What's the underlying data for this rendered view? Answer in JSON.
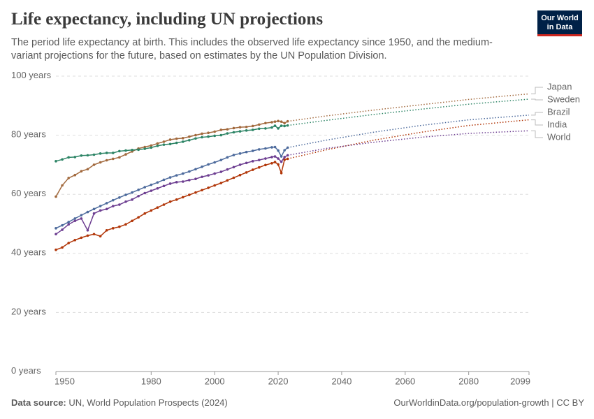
{
  "logo": "Our World in Data",
  "chart_data": {
    "type": "line",
    "title": "Life expectancy, including UN projections",
    "subtitle": "The period life expectancy at birth. This includes the observed life expectancy since 1950, and the medium-variant projections for the future, based on estimates by the UN Population Division.",
    "source_label": "Data source:",
    "source": "UN, World Population Prospects (2024)",
    "url": "OurWorldinData.org/population-growth | CC BY",
    "xlim": [
      1950,
      2099
    ],
    "xticks": [
      1950,
      1980,
      2000,
      2020,
      2040,
      2060,
      2080,
      2099
    ],
    "ylim": [
      0,
      100
    ],
    "yticks": [
      {
        "value": 0,
        "label": "0 years"
      },
      {
        "value": 20,
        "label": "20 years"
      },
      {
        "value": 40,
        "label": "40 years"
      },
      {
        "value": 60,
        "label": "60 years"
      },
      {
        "value": 80,
        "label": "80 years"
      },
      {
        "value": 100,
        "label": "100 years"
      }
    ],
    "grid": true,
    "x": [
      1950,
      1952,
      1954,
      1956,
      1958,
      1960,
      1962,
      1964,
      1966,
      1968,
      1970,
      1972,
      1974,
      1976,
      1978,
      1980,
      1982,
      1984,
      1986,
      1988,
      1990,
      1992,
      1994,
      1996,
      1998,
      2000,
      2002,
      2004,
      2006,
      2008,
      2010,
      2012,
      2014,
      2016,
      2018,
      2019,
      2020,
      2021,
      2022,
      2023
    ],
    "x_projection": [
      2023,
      2035,
      2050,
      2065,
      2080,
      2099
    ],
    "series": [
      {
        "name": "Japan",
        "color": "#a2693d",
        "values": [
          59.2,
          63,
          65.5,
          66.5,
          67.8,
          68.5,
          70,
          70.8,
          71.5,
          72,
          72.5,
          73.5,
          74.5,
          75.5,
          76,
          76.5,
          77.2,
          77.8,
          78.5,
          78.8,
          79,
          79.5,
          80,
          80.5,
          80.8,
          81.2,
          81.8,
          82,
          82.4,
          82.7,
          82.8,
          83.1,
          83.6,
          84.1,
          84.4,
          84.6,
          84.8,
          84.6,
          84.1,
          84.7
        ],
        "projection": [
          84.7,
          86.5,
          88.5,
          90.3,
          92.1,
          94.0
        ]
      },
      {
        "name": "Sweden",
        "color": "#2c8465",
        "values": [
          71.2,
          71.8,
          72.5,
          72.6,
          73.1,
          73.2,
          73.4,
          73.8,
          74,
          74,
          74.6,
          74.8,
          75,
          75.1,
          75.4,
          75.8,
          76.4,
          76.8,
          77,
          77.4,
          77.8,
          78.3,
          78.9,
          79.3,
          79.5,
          79.8,
          80,
          80.6,
          81,
          81.3,
          81.6,
          81.8,
          82.2,
          82.3,
          82.6,
          83.2,
          82.3,
          83.2,
          83.1,
          83.3
        ],
        "projection": [
          83.3,
          85,
          87,
          88.8,
          90.5,
          92.2
        ]
      },
      {
        "name": "Brazil",
        "color": "#4c6a9c",
        "values": [
          48.5,
          49.5,
          50.6,
          51.8,
          52.9,
          54,
          55,
          56,
          57,
          58,
          58.9,
          59.8,
          60.6,
          61.5,
          62.4,
          63.2,
          64,
          64.9,
          65.7,
          66.4,
          67,
          67.7,
          68.5,
          69.3,
          70.1,
          70.8,
          71.6,
          72.5,
          73.3,
          73.8,
          74.3,
          74.7,
          75.2,
          75.5,
          75.9,
          76,
          74.8,
          72.8,
          74.9,
          75.8
        ],
        "projection": [
          75.8,
          78.3,
          81,
          83.3,
          85.2,
          86.8
        ]
      },
      {
        "name": "India",
        "color": "#b13507",
        "values": [
          41.2,
          42,
          43.5,
          44.5,
          45.3,
          46,
          46.5,
          45.8,
          47.8,
          48.5,
          49,
          49.8,
          51,
          52.2,
          53.5,
          54.5,
          55.5,
          56.5,
          57.5,
          58.2,
          59,
          59.8,
          60.6,
          61.4,
          62.2,
          63,
          63.8,
          64.7,
          65.6,
          66.5,
          67.4,
          68.3,
          69.1,
          69.9,
          70.5,
          70.9,
          70.1,
          67.2,
          71.7,
          72
        ],
        "projection": [
          72,
          75,
          78.3,
          81,
          83.3,
          85.2
        ]
      },
      {
        "name": "World",
        "color": "#6d3e91",
        "values": [
          46.5,
          48,
          49.8,
          51,
          51.8,
          47.8,
          53.5,
          54.5,
          55,
          56,
          56.5,
          57.5,
          58.2,
          59.4,
          60.4,
          61.2,
          62,
          62.8,
          63.6,
          64.1,
          64.3,
          64.8,
          65.2,
          65.9,
          66.4,
          67,
          67.6,
          68.4,
          69.2,
          70,
          70.6,
          71.2,
          71.6,
          72.1,
          72.6,
          72.8,
          72.1,
          71,
          72.6,
          73.2
        ],
        "projection": [
          73.2,
          75.5,
          77.6,
          79.3,
          80.6,
          81.5
        ]
      }
    ]
  }
}
